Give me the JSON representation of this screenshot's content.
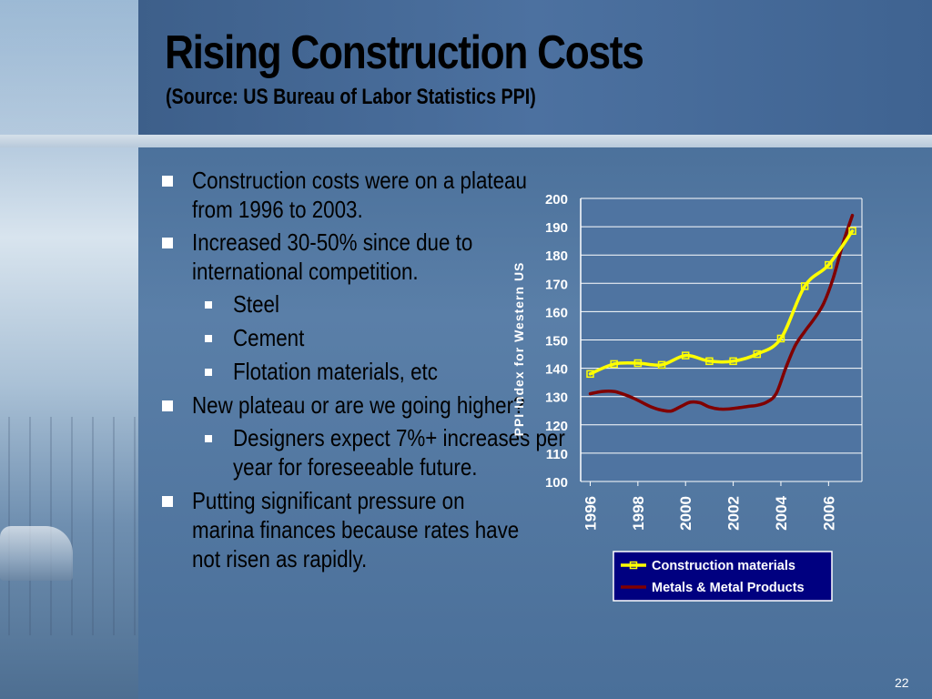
{
  "slide": {
    "title": "Rising Construction Costs",
    "subtitle": "(Source:  US Bureau of Labor Statistics PPI)",
    "page_number": "22"
  },
  "bullets": [
    {
      "level": 1,
      "text": "Construction costs were on a plateau from 1996 to 2003."
    },
    {
      "level": 1,
      "text": "Increased 30-50% since due to international competition."
    },
    {
      "level": 2,
      "text": "Steel"
    },
    {
      "level": 2,
      "text": "Cement"
    },
    {
      "level": 2,
      "text": "Flotation materials, etc"
    },
    {
      "level": 1,
      "text": "New plateau or are we going higher?"
    },
    {
      "level": 2,
      "text": "Designers expect 7%+ increases per year for foreseeable future."
    },
    {
      "level": 1,
      "text": "Putting significant pressure on marina finances because rates have not risen as rapidly."
    }
  ],
  "colors": {
    "bullet_marker": "#ffffff",
    "plot_background": "#4f74a1",
    "construction": "#ffff00",
    "metals": "#800000",
    "legend_background": "#000080",
    "axis_text": "#ffffff"
  },
  "chart_data": {
    "type": "line",
    "ylabel": "PPI Index for Western US",
    "ylim": [
      100,
      200
    ],
    "y_ticks": [
      100,
      110,
      120,
      130,
      140,
      150,
      160,
      170,
      180,
      190,
      200
    ],
    "xlim": [
      1995.6,
      2007.4
    ],
    "x_ticks": [
      "1996",
      "1998",
      "2000",
      "2002",
      "2004",
      "2006"
    ],
    "grid": true,
    "legend_position": "bottom-right",
    "series": [
      {
        "name": "Construction materials",
        "color": "#ffff00",
        "marker": "square",
        "x": [
          1996,
          1997,
          1998,
          1999,
          2000,
          2001,
          2002,
          2003,
          2004,
          2005,
          2006,
          2007
        ],
        "y": [
          138,
          141.5,
          141.8,
          141.2,
          144.5,
          142.5,
          142.5,
          145,
          150.5,
          169,
          176.5,
          188.5
        ]
      },
      {
        "name": "Metals & Metal Products",
        "color": "#800000",
        "marker": "none",
        "x": [
          1996,
          1996.5,
          1997,
          1997.4,
          1997.8,
          1998.2,
          1998.6,
          1999,
          1999.4,
          1999.8,
          2000.2,
          2000.6,
          2001,
          2001.4,
          2001.8,
          2002.2,
          2002.6,
          2003,
          2003.4,
          2003.8,
          2004.2,
          2004.6,
          2005,
          2005.4,
          2005.8,
          2006.2,
          2006.6,
          2007
        ],
        "y": [
          131,
          131.8,
          131.8,
          130.8,
          129.5,
          127.8,
          126.2,
          125.2,
          124.9,
          126.5,
          128,
          127.8,
          126.3,
          125.6,
          125.6,
          126,
          126.5,
          126.9,
          128,
          131,
          140,
          148,
          153,
          157.5,
          163,
          172,
          184,
          194
        ]
      }
    ]
  }
}
